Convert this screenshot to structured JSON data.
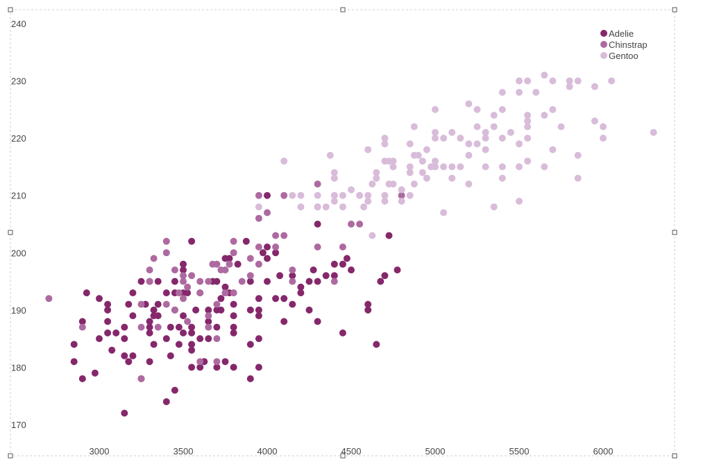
{
  "chart_data": {
    "type": "scatter",
    "title": "",
    "xlabel": "",
    "ylabel": "",
    "xlim": [
      2600,
      6350
    ],
    "ylim": [
      168,
      242
    ],
    "x_ticks": [
      "3000",
      "3500",
      "4000",
      "4500",
      "5000",
      "5500",
      "6000"
    ],
    "y_ticks": [
      "170",
      "180",
      "190",
      "200",
      "210",
      "220",
      "230",
      "240"
    ],
    "grid": false,
    "legend_position": "top-right",
    "colors": {
      "Adelie": "#85286b",
      "Chinstrap": "#ad6aa0",
      "Gentoo": "#d8bcd9"
    },
    "series": [
      {
        "name": "Adelie",
        "points": [
          [
            2850,
            184
          ],
          [
            2850,
            181
          ],
          [
            2900,
            188
          ],
          [
            2900,
            178
          ],
          [
            2925,
            193
          ],
          [
            2975,
            179
          ],
          [
            3000,
            192
          ],
          [
            3000,
            185
          ],
          [
            3050,
            191
          ],
          [
            3050,
            190
          ],
          [
            3050,
            186
          ],
          [
            3050,
            188
          ],
          [
            3075,
            183
          ],
          [
            3100,
            186
          ],
          [
            3150,
            187
          ],
          [
            3150,
            182
          ],
          [
            3150,
            185
          ],
          [
            3150,
            172
          ],
          [
            3175,
            181
          ],
          [
            3175,
            191
          ],
          [
            3200,
            193
          ],
          [
            3200,
            189
          ],
          [
            3200,
            182
          ],
          [
            3250,
            195
          ],
          [
            3250,
            178
          ],
          [
            3275,
            191
          ],
          [
            3300,
            188
          ],
          [
            3300,
            187
          ],
          [
            3300,
            186
          ],
          [
            3300,
            181
          ],
          [
            3300,
            195
          ],
          [
            3325,
            184
          ],
          [
            3325,
            190
          ],
          [
            3325,
            189
          ],
          [
            3350,
            189
          ],
          [
            3350,
            191
          ],
          [
            3350,
            195
          ],
          [
            3400,
            174
          ],
          [
            3400,
            185
          ],
          [
            3400,
            193
          ],
          [
            3425,
            187
          ],
          [
            3425,
            182
          ],
          [
            3450,
            190
          ],
          [
            3450,
            176
          ],
          [
            3450,
            193
          ],
          [
            3450,
            195
          ],
          [
            3475,
            184
          ],
          [
            3475,
            187
          ],
          [
            3500,
            193
          ],
          [
            3500,
            189
          ],
          [
            3500,
            198
          ],
          [
            3500,
            186
          ],
          [
            3500,
            197
          ],
          [
            3525,
            193
          ],
          [
            3550,
            180
          ],
          [
            3550,
            184
          ],
          [
            3550,
            186
          ],
          [
            3550,
            187
          ],
          [
            3550,
            183
          ],
          [
            3550,
            202
          ],
          [
            3575,
            190
          ],
          [
            3600,
            180
          ],
          [
            3600,
            185
          ],
          [
            3600,
            193
          ],
          [
            3625,
            181
          ],
          [
            3650,
            185
          ],
          [
            3650,
            190
          ],
          [
            3650,
            188
          ],
          [
            3675,
            195
          ],
          [
            3700,
            190
          ],
          [
            3700,
            187
          ],
          [
            3700,
            180
          ],
          [
            3700,
            195
          ],
          [
            3725,
            192
          ],
          [
            3725,
            190
          ],
          [
            3750,
            181
          ],
          [
            3750,
            193
          ],
          [
            3750,
            199
          ],
          [
            3750,
            194
          ],
          [
            3775,
            199
          ],
          [
            3775,
            193
          ],
          [
            3800,
            191
          ],
          [
            3800,
            189
          ],
          [
            3800,
            187
          ],
          [
            3800,
            186
          ],
          [
            3800,
            180
          ],
          [
            3825,
            198
          ],
          [
            3875,
            202
          ],
          [
            3900,
            178
          ],
          [
            3900,
            184
          ],
          [
            3900,
            190
          ],
          [
            3900,
            195
          ],
          [
            3950,
            192
          ],
          [
            3950,
            189
          ],
          [
            3950,
            190
          ],
          [
            3950,
            185
          ],
          [
            3950,
            180
          ],
          [
            3975,
            200
          ],
          [
            4000,
            201
          ],
          [
            4000,
            210
          ],
          [
            4000,
            195
          ],
          [
            4000,
            199
          ],
          [
            4050,
            192
          ],
          [
            4050,
            200
          ],
          [
            4075,
            196
          ],
          [
            4100,
            192
          ],
          [
            4100,
            188
          ],
          [
            4150,
            196
          ],
          [
            4150,
            191
          ],
          [
            4200,
            193
          ],
          [
            4200,
            194
          ],
          [
            4250,
            190
          ],
          [
            4250,
            195
          ],
          [
            4275,
            197
          ],
          [
            4300,
            205
          ],
          [
            4300,
            195
          ],
          [
            4300,
            188
          ],
          [
            4350,
            196
          ],
          [
            4400,
            196
          ],
          [
            4400,
            198
          ],
          [
            4450,
            198
          ],
          [
            4450,
            186
          ],
          [
            4475,
            199
          ],
          [
            4500,
            197
          ],
          [
            4600,
            191
          ],
          [
            4600,
            190
          ],
          [
            4650,
            184
          ],
          [
            4675,
            195
          ],
          [
            4700,
            196
          ],
          [
            4725,
            203
          ],
          [
            4775,
            197
          ]
        ]
      },
      {
        "name": "Chinstrap",
        "points": [
          [
            2700,
            192
          ],
          [
            2900,
            187
          ],
          [
            3250,
            178
          ],
          [
            3250,
            191
          ],
          [
            3250,
            187
          ],
          [
            3300,
            197
          ],
          [
            3300,
            195
          ],
          [
            3325,
            199
          ],
          [
            3350,
            187
          ],
          [
            3400,
            202
          ],
          [
            3400,
            200
          ],
          [
            3400,
            191
          ],
          [
            3450,
            190
          ],
          [
            3450,
            197
          ],
          [
            3475,
            193
          ],
          [
            3500,
            195
          ],
          [
            3500,
            196
          ],
          [
            3500,
            192
          ],
          [
            3525,
            188
          ],
          [
            3525,
            194
          ],
          [
            3550,
            196
          ],
          [
            3600,
            195
          ],
          [
            3600,
            181
          ],
          [
            3600,
            193
          ],
          [
            3650,
            189
          ],
          [
            3650,
            187
          ],
          [
            3650,
            195
          ],
          [
            3675,
            198
          ],
          [
            3700,
            181
          ],
          [
            3700,
            185
          ],
          [
            3700,
            191
          ],
          [
            3700,
            198
          ],
          [
            3725,
            197
          ],
          [
            3750,
            197
          ],
          [
            3750,
            193
          ],
          [
            3775,
            198
          ],
          [
            3800,
            193
          ],
          [
            3800,
            202
          ],
          [
            3800,
            200
          ],
          [
            3800,
            193
          ],
          [
            3850,
            195
          ],
          [
            3900,
            199
          ],
          [
            3900,
            196
          ],
          [
            3950,
            201
          ],
          [
            3950,
            206
          ],
          [
            3950,
            198
          ],
          [
            3950,
            210
          ],
          [
            4000,
            207
          ],
          [
            4050,
            203
          ],
          [
            4050,
            201
          ],
          [
            4100,
            210
          ],
          [
            4100,
            203
          ],
          [
            4150,
            197
          ],
          [
            4150,
            195
          ],
          [
            4300,
            212
          ],
          [
            4300,
            201
          ],
          [
            4400,
            195
          ],
          [
            4450,
            201
          ],
          [
            4500,
            205
          ],
          [
            4550,
            205
          ],
          [
            4800,
            210
          ]
        ]
      },
      {
        "name": "Gentoo",
        "points": [
          [
            3950,
            208
          ],
          [
            4100,
            216
          ],
          [
            4150,
            210
          ],
          [
            4200,
            210
          ],
          [
            4200,
            208
          ],
          [
            4300,
            210
          ],
          [
            4300,
            208
          ],
          [
            4300,
            208
          ],
          [
            4350,
            208
          ],
          [
            4375,
            217
          ],
          [
            4400,
            214
          ],
          [
            4400,
            213
          ],
          [
            4400,
            210
          ],
          [
            4400,
            209
          ],
          [
            4450,
            208
          ],
          [
            4450,
            210
          ],
          [
            4500,
            211
          ],
          [
            4550,
            210
          ],
          [
            4575,
            208
          ],
          [
            4600,
            218
          ],
          [
            4600,
            210
          ],
          [
            4600,
            209
          ],
          [
            4625,
            203
          ],
          [
            4625,
            212
          ],
          [
            4650,
            214
          ],
          [
            4650,
            213
          ],
          [
            4700,
            220
          ],
          [
            4700,
            219
          ],
          [
            4700,
            216
          ],
          [
            4700,
            210
          ],
          [
            4700,
            209
          ],
          [
            4725,
            216
          ],
          [
            4725,
            212
          ],
          [
            4750,
            216
          ],
          [
            4750,
            215
          ],
          [
            4750,
            212
          ],
          [
            4800,
            211
          ],
          [
            4800,
            209
          ],
          [
            4850,
            219
          ],
          [
            4850,
            215
          ],
          [
            4850,
            214
          ],
          [
            4850,
            210
          ],
          [
            4875,
            222
          ],
          [
            4875,
            217
          ],
          [
            4875,
            212
          ],
          [
            4900,
            217
          ],
          [
            4925,
            216
          ],
          [
            4925,
            214
          ],
          [
            4950,
            218
          ],
          [
            4950,
            213
          ],
          [
            4975,
            215
          ],
          [
            5000,
            225
          ],
          [
            5000,
            221
          ],
          [
            5000,
            220
          ],
          [
            5000,
            216
          ],
          [
            5000,
            215
          ],
          [
            5050,
            220
          ],
          [
            5050,
            215
          ],
          [
            5050,
            207
          ],
          [
            5100,
            221
          ],
          [
            5100,
            215
          ],
          [
            5100,
            213
          ],
          [
            5150,
            220
          ],
          [
            5150,
            215
          ],
          [
            5200,
            226
          ],
          [
            5200,
            219
          ],
          [
            5200,
            217
          ],
          [
            5200,
            212
          ],
          [
            5250,
            225
          ],
          [
            5250,
            222
          ],
          [
            5250,
            219
          ],
          [
            5300,
            221
          ],
          [
            5300,
            220
          ],
          [
            5300,
            218
          ],
          [
            5300,
            215
          ],
          [
            5350,
            224
          ],
          [
            5350,
            222
          ],
          [
            5350,
            208
          ],
          [
            5400,
            228
          ],
          [
            5400,
            225
          ],
          [
            5400,
            220
          ],
          [
            5400,
            215
          ],
          [
            5400,
            213
          ],
          [
            5450,
            221
          ],
          [
            5500,
            230
          ],
          [
            5500,
            228
          ],
          [
            5500,
            219
          ],
          [
            5500,
            215
          ],
          [
            5500,
            209
          ],
          [
            5550,
            230
          ],
          [
            5550,
            224
          ],
          [
            5550,
            223
          ],
          [
            5550,
            222
          ],
          [
            5550,
            220
          ],
          [
            5550,
            216
          ],
          [
            5600,
            228
          ],
          [
            5650,
            231
          ],
          [
            5650,
            224
          ],
          [
            5650,
            215
          ],
          [
            5700,
            230
          ],
          [
            5700,
            225
          ],
          [
            5700,
            218
          ],
          [
            5750,
            222
          ],
          [
            5800,
            230
          ],
          [
            5800,
            229
          ],
          [
            5850,
            230
          ],
          [
            5850,
            217
          ],
          [
            5850,
            213
          ],
          [
            5950,
            229
          ],
          [
            5950,
            223
          ],
          [
            6000,
            222
          ],
          [
            6000,
            220
          ],
          [
            6050,
            230
          ],
          [
            6300,
            221
          ]
        ]
      }
    ]
  }
}
